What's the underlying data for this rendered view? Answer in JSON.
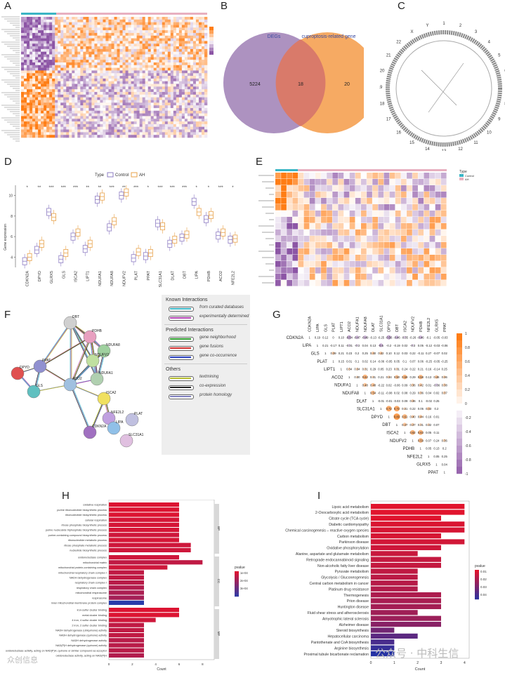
{
  "panels": {
    "A": "A",
    "B": "B",
    "C": "C",
    "D": "D",
    "E": "E",
    "F": "F",
    "G": "G",
    "H": "H",
    "I": "I"
  },
  "venn": {
    "left_label": "DEGs",
    "right_label": "cuproptosis-related gene",
    "left_only": "5224",
    "overlap": "18",
    "right_only": "20",
    "left_color": "#a98cbd",
    "right_color": "#f5a55b",
    "overlap_color": "#d97a6a"
  },
  "boxplot": {
    "legend_title": "Type",
    "legend_items": [
      {
        "label": "Control",
        "color": "#8e7cc3"
      },
      {
        "label": "AH",
        "color": "#e8a24a"
      }
    ],
    "ylabel": "Gene expression",
    "yticks": [
      "4",
      "6",
      "8",
      "10"
    ],
    "genes": [
      "CDKN2A",
      "DPYD",
      "GLRX5",
      "GLS",
      "ISCA2",
      "LIPT1",
      "NDUFA1",
      "NDUFA8",
      "NDUFV2",
      "PLAT",
      "PPAT",
      "SLC31A1",
      "DLAT",
      "DBT",
      "LIPA",
      "PDHB",
      "ACO2",
      "NFE2L2"
    ],
    "sig": [
      "*",
      "**",
      "***",
      "***",
      "***",
      "**",
      "**",
      "***",
      "**",
      "***",
      "*",
      "***",
      "***",
      "***",
      "*",
      "*",
      "***",
      "*"
    ]
  },
  "heatmap_legend": {
    "title": "Type",
    "items": [
      "Control",
      "AH"
    ]
  },
  "network": {
    "known_title": "Known Interactions",
    "known": [
      {
        "label": "from curated databases",
        "color": "#3ab5c5"
      },
      {
        "label": "experimentally determined",
        "color": "#b040b0"
      }
    ],
    "predicted_title": "Predicted Interactions",
    "predicted": [
      {
        "label": "gene neighborhood",
        "color": "#2a9a2a"
      },
      {
        "label": "gene fusions",
        "color": "#d03030"
      },
      {
        "label": "gene co-occurrence",
        "color": "#2a40c0"
      }
    ],
    "others_title": "Others",
    "others": [
      {
        "label": "textmining",
        "color": "#b8c030"
      },
      {
        "label": "co-expression",
        "color": "#222222"
      },
      {
        "label": "protein homology",
        "color": "#8080c0"
      }
    ],
    "nodes": [
      "DBT",
      "PDHB",
      "NDUFA8",
      "NDUFV2",
      "NDUFA1",
      "DPYD",
      "PPAT",
      "GLS",
      "ACO2",
      "ISCA2",
      "NFE2L2",
      "CDKN2A",
      "LIPA",
      "PLAT",
      "SLC31A1"
    ]
  },
  "corr": {
    "genes": [
      "CDKN2A",
      "LIPA",
      "GLS",
      "PLAT",
      "LIPT1",
      "ACO2",
      "NDUFA1",
      "NDUFA8",
      "DLAT",
      "SLC31A1",
      "DPYD",
      "DBT",
      "ISCA2",
      "NDUFV2",
      "PDHB",
      "NFE2L2",
      "GLRX5",
      "PPAT"
    ],
    "legend_ticks": [
      "1",
      "0.8",
      "0.6",
      "0.4",
      "0.2",
      "0",
      "-0.2",
      "-0.4",
      "-0.6",
      "-0.8",
      "-1"
    ],
    "rows": [
      [
        "1",
        "0.19",
        "0.12",
        "0",
        "0.10",
        "-0.54",
        "-0.47",
        "-0.49",
        "-0.13",
        "-0.25",
        "-0.56",
        "-0.46",
        "-0.35",
        "-0.26",
        "-0.46",
        "-0.1",
        "-0.05",
        "-0.03"
      ],
      [
        "",
        "1",
        "0.21",
        "-0.17",
        "0.11",
        "-0.31",
        "-0.3",
        "0.04",
        "0.13",
        "-0.5",
        "-0.2",
        "-0.19",
        "0.02",
        "-0.3",
        "0.05",
        "-0.12",
        "-0.03",
        "-0.06"
      ],
      [
        "",
        "",
        "1",
        "0.39",
        "0.21",
        "0.23",
        "0.2",
        "0.25",
        "0.40",
        "0.42",
        "0.10",
        "0.12",
        "0.03",
        "0.22",
        "-0.11",
        "0.27",
        "-0.07",
        "0.02"
      ],
      [
        "",
        "",
        "",
        "1",
        "0.15",
        "0.01",
        "0.1",
        "0.02",
        "0.14",
        "-0.06",
        "-0.05",
        "0.05",
        "0.1",
        "0.07",
        "0.06",
        "-0.25",
        "-0.05",
        "-0.25"
      ],
      [
        "",
        "",
        "",
        "",
        "1",
        "0.34",
        "0.34",
        "0.31",
        "0.29",
        "0.05",
        "0.23",
        "0.31",
        "0.24",
        "0.22",
        "0.21",
        "0.16",
        "-0.14",
        "0.25"
      ],
      [
        "",
        "",
        "",
        "",
        "",
        "1",
        "0.30",
        "0.62",
        "0.31",
        "0.21",
        "0.34",
        "0.50",
        "0.59",
        "0.29",
        "0.58",
        "0.13",
        "0.46",
        "0.36"
      ],
      [
        "",
        "",
        "",
        "",
        "",
        "",
        "1",
        "0.48",
        "0.48",
        "-0.22",
        "0.02",
        "-0.06",
        "0.09",
        "0.36",
        "0.42",
        "0.01",
        "-0.36",
        "0.38"
      ],
      [
        "",
        "",
        "",
        "",
        "",
        "",
        "",
        "1",
        "0.54",
        "-0.11",
        "-0.08",
        "0.02",
        "0.08",
        "0.29",
        "0.36",
        "0.04",
        "0.02",
        "0.37"
      ],
      [
        "",
        "",
        "",
        "",
        "",
        "",
        "",
        "",
        "1",
        "-0.01",
        "-0.01",
        "-0.03",
        "0.09",
        "0.36",
        "0.1",
        "-0.02",
        "0.25",
        ""
      ],
      [
        "",
        "",
        "",
        "",
        "",
        "",
        "",
        "",
        "",
        "1",
        "0.72",
        "0.72",
        "0.31",
        "0.22",
        "0.05",
        "0.43",
        "0.2",
        ""
      ],
      [
        "",
        "",
        "",
        "",
        "",
        "",
        "",
        "",
        "",
        "",
        "1",
        "0.83",
        "0.61",
        "0.40",
        "0.44",
        "0.16",
        "0.01",
        ""
      ],
      [
        "",
        "",
        "",
        "",
        "",
        "",
        "",
        "",
        "",
        "",
        "",
        "1",
        "0.47",
        "0.37",
        "0.31",
        "0.32",
        "0.07",
        ""
      ],
      [
        "",
        "",
        "",
        "",
        "",
        "",
        "",
        "",
        "",
        "",
        "",
        "",
        "1",
        "0.62",
        "0.63",
        "0.05",
        "0.11",
        ""
      ],
      [
        "",
        "",
        "",
        "",
        "",
        "",
        "",
        "",
        "",
        "",
        "",
        "",
        "",
        "1",
        "0.59",
        "0.07",
        "0.24",
        "0.36"
      ],
      [
        "",
        "",
        "",
        "",
        "",
        "",
        "",
        "",
        "",
        "",
        "",
        "",
        "",
        "",
        "1",
        "0.05",
        "0.13",
        "0.2"
      ],
      [
        "",
        "",
        "",
        "",
        "",
        "",
        "",
        "",
        "",
        "",
        "",
        "",
        "",
        "",
        "",
        "1",
        "0.05",
        "0.25"
      ],
      [
        "",
        "",
        "",
        "",
        "",
        "",
        "",
        "",
        "",
        "",
        "",
        "",
        "",
        "",
        "",
        "",
        "1",
        "0.04"
      ],
      [
        "",
        "",
        "",
        "",
        "",
        "",
        "",
        "",
        "",
        "",
        "",
        "",
        "",
        "",
        "",
        "",
        "",
        "1"
      ]
    ]
  },
  "go_bar": {
    "xlabel": "Count",
    "xticks": [
      "0",
      "2",
      "4",
      "6",
      "8"
    ],
    "legend_title": "pvalue",
    "legend_ticks": [
      "1e-04",
      "2e-04",
      "3e-04"
    ],
    "groups": [
      "BP",
      "CC",
      "MF"
    ],
    "terms": [
      "oxidative respiration",
      "purine ribonucleotide biosynthetic process",
      "ribonucleotide biosynthetic process",
      "cellular respiration",
      "ribose phosphate biosynthetic process",
      "purine nucleoside triphosphate biosynthetic process",
      "purine-containing compound biosynthetic process",
      "ribonucleotide metabolic process",
      "ribose phosphate metabolic process",
      "nucleotide biosynthetic process",
      "oxidoreductase complex",
      "mitochondrial matrix",
      "mitochondrial protein-containing complex",
      "mitochondrial respiratory chain complex I",
      "NADH dehydrogenase complex",
      "respiratory chain complex I",
      "respiratory chain complex",
      "mitochondrial respirasome",
      "respirasome",
      "inner mitochondrial membrane protein complex",
      "iron-sulfur cluster binding",
      "metal cluster binding",
      "4 iron, 4 sulfur cluster binding",
      "2 iron, 2 sulfur cluster binding",
      "NADH dehydrogenase (ubiquinone) activity",
      "NADH dehydrogenase (quinone) activity",
      "NADH dehydrogenase activity",
      "NAD(P)H dehydrogenase (quinone) activity",
      "oxidoreductase activity, acting on NAD(P)H, quinone or similar compound as acceptor",
      "oxidoreductase activity, acting on NAD(P)H"
    ],
    "counts": [
      6,
      6,
      6,
      6,
      6,
      6,
      6,
      6,
      7,
      7,
      6,
      8,
      5,
      3,
      3,
      3,
      3,
      3,
      3,
      3,
      6,
      6,
      4,
      3,
      3,
      3,
      3,
      3,
      3,
      3
    ],
    "pvals": [
      8e-05,
      8e-05,
      8e-05,
      9e-05,
      9e-05,
      9e-05,
      0.0001,
      9e-05,
      0.0001,
      0.0001,
      0.0001,
      0.00012,
      0.0001,
      0.00012,
      0.00012,
      0.00013,
      0.00014,
      0.00015,
      0.00016,
      0.00034,
      8e-05,
      8e-05,
      0.0001,
      0.00012,
      0.00012,
      0.00012,
      0.00013,
      0.00013,
      0.00013,
      0.00014
    ]
  },
  "kegg_bar": {
    "xlabel": "Count",
    "xticks": [
      "0",
      "1",
      "2",
      "3",
      "4"
    ],
    "legend_title": "pvalue",
    "legend_ticks": [
      "0.01",
      "0.02",
      "0.03",
      "0.04"
    ],
    "terms": [
      "Lipoic acid metabolism",
      "2-Oxocarboxylic acid metabolism",
      "Citrate cycle (TCA cycle)",
      "Diabetic cardiomyopathy",
      "Chemical carcinogenesis – reactive oxygen species",
      "Carbon metabolism",
      "Parkinson disease",
      "Oxidative phosphorylation",
      "Alanine, aspartate and glutamate metabolism",
      "Retrograde endocannabinoid signaling",
      "Non-alcoholic fatty liver disease",
      "Pyruvate metabolism",
      "Glycolysis / Gluconeogenesis",
      "Central carbon metabolism in cancer",
      "Platinum drug resistance",
      "Thermogenesis",
      "Prion disease",
      "Huntington disease",
      "Fluid shear stress and atherosclerosis",
      "Amyotrophic lateral sclerosis",
      "Alzheimer disease",
      "Steroid biosynthesis",
      "Hepatocellular carcinoma",
      "Pantothenate and CoA biosynthesis",
      "Arginine biosynthesis",
      "Proximal tubule bicarbonate reclamation"
    ],
    "counts": [
      4,
      4,
      3,
      4,
      4,
      3,
      4,
      3,
      2,
      3,
      3,
      2,
      2,
      2,
      2,
      3,
      3,
      3,
      2,
      3,
      3,
      1,
      2,
      1,
      1,
      1
    ],
    "pvals": [
      0.0005,
      0.0006,
      0.001,
      0.002,
      0.003,
      0.003,
      0.004,
      0.005,
      0.006,
      0.007,
      0.007,
      0.008,
      0.009,
      0.01,
      0.011,
      0.012,
      0.013,
      0.014,
      0.015,
      0.016,
      0.02,
      0.025,
      0.03,
      0.034,
      0.038,
      0.042
    ]
  },
  "watermark": {
    "left": "众创信息",
    "right": "公众号 · 中科生信"
  }
}
